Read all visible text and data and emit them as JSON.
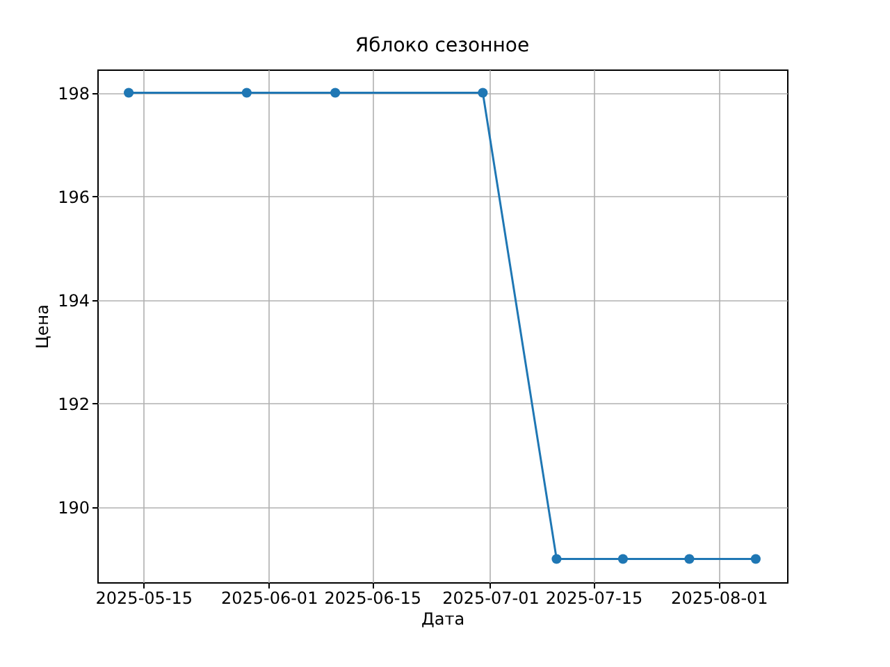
{
  "chart_data": {
    "type": "line",
    "title": "Яблоко сезонное",
    "xlabel": "Дата",
    "ylabel": "Цена",
    "x": [
      "2025-05-13",
      "2025-05-29",
      "2025-06-10",
      "2025-06-30",
      "2025-07-10",
      "2025-07-19",
      "2025-07-28",
      "2025-08-06"
    ],
    "series": [
      {
        "color": "#1f77b4",
        "values": [
          198,
          198,
          198,
          198,
          189,
          189,
          189,
          189
        ]
      }
    ],
    "xlim": [
      "2025-05-08T18:00",
      "2025-08-10T06:00"
    ],
    "xticks": [
      "2025-05-15",
      "2025-06-01",
      "2025-06-15",
      "2025-07-01",
      "2025-07-15",
      "2025-08-01"
    ],
    "ylim": [
      188.55,
      198.45
    ],
    "yticks": [
      190,
      192,
      194,
      196,
      198
    ],
    "grid": true,
    "marker": "circle",
    "line_style": "solid"
  }
}
